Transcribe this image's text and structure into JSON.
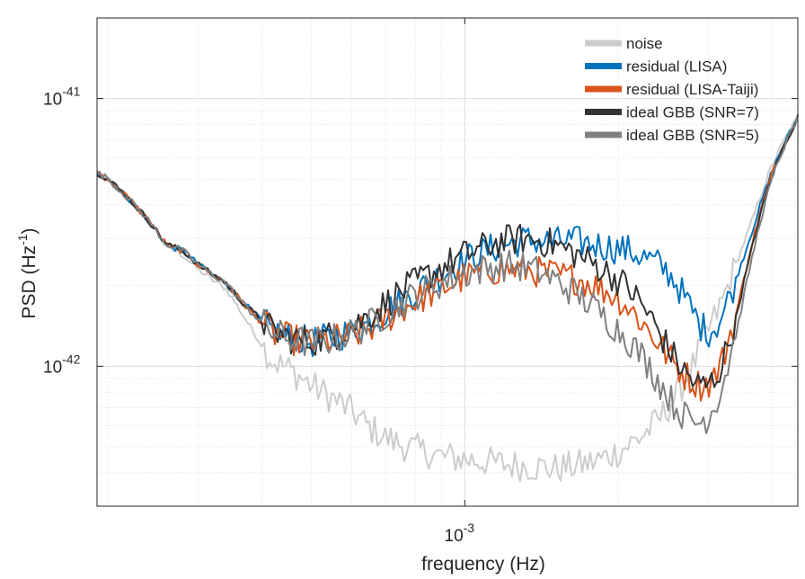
{
  "chart_data": {
    "type": "line",
    "title": "",
    "xlabel": "frequency (Hz)",
    "ylabel_base": "PSD (Hz",
    "ylabel_exp": "-1",
    "ylabel_close": ")",
    "xscale": "log",
    "yscale": "log",
    "xlim": [
      0.00019,
      0.0045
    ],
    "ylim": [
      3e-43,
      2e-41
    ],
    "grid": true,
    "legend_position": "top-right",
    "x_ticks": [
      {
        "value": 0.001,
        "base": "10",
        "exp": "-3"
      }
    ],
    "y_ticks": [
      {
        "value": 1e-42,
        "base": "10",
        "exp": "-42"
      },
      {
        "value": 1e-41,
        "base": "10",
        "exp": "-41"
      }
    ],
    "series": [
      {
        "name": "noise",
        "color": "#cccccc",
        "points": [
          [
            0.00019,
            5.3e-42
          ],
          [
            0.0002,
            5e-42
          ],
          [
            0.00022,
            4.2e-42
          ],
          [
            0.00024,
            3.5e-42
          ],
          [
            0.00026,
            2.8e-42
          ],
          [
            0.00028,
            2.6e-42
          ],
          [
            0.0003,
            2.3e-42
          ],
          [
            0.00032,
            2.1e-42
          ],
          [
            0.00034,
            1.95e-42
          ],
          [
            0.00036,
            1.65e-42
          ],
          [
            0.00038,
            1.4e-42
          ],
          [
            0.0004,
            1.2e-42
          ],
          [
            0.00042,
            1.05e-42
          ],
          [
            0.00045,
            9.8e-43
          ],
          [
            0.00048,
            9e-43
          ],
          [
            0.0005,
            8.5e-43
          ],
          [
            0.00055,
            7.6e-43
          ],
          [
            0.0006,
            6.8e-43
          ],
          [
            0.00065,
            5.9e-43
          ],
          [
            0.0007,
            5.4e-43
          ],
          [
            0.00075,
            5.1e-43
          ],
          [
            0.0008,
            4.9e-43
          ],
          [
            0.0009,
            4.6e-43
          ],
          [
            0.001,
            4.5e-43
          ],
          [
            0.0011,
            4.4e-43
          ],
          [
            0.0012,
            4.3e-43
          ],
          [
            0.0013,
            4.25e-43
          ],
          [
            0.0014,
            4.2e-43
          ],
          [
            0.0015,
            4.15e-43
          ],
          [
            0.0016,
            4.2e-43
          ],
          [
            0.0017,
            4.3e-43
          ],
          [
            0.0018,
            4.4e-43
          ],
          [
            0.0019,
            4.6e-43
          ],
          [
            0.002,
            4.8e-43
          ],
          [
            0.0021,
            5.1e-43
          ],
          [
            0.0022,
            5.4e-43
          ],
          [
            0.0023,
            5.8e-43
          ],
          [
            0.0024,
            6.3e-43
          ],
          [
            0.0025,
            7e-43
          ],
          [
            0.0026,
            7.8e-43
          ],
          [
            0.0027,
            8.8e-43
          ],
          [
            0.0028,
            1e-42
          ],
          [
            0.003,
            1.35e-42
          ],
          [
            0.0032,
            1.75e-42
          ],
          [
            0.0034,
            2.4e-42
          ],
          [
            0.0036,
            3.2e-42
          ],
          [
            0.0038,
            4.3e-42
          ],
          [
            0.004,
            5.6e-42
          ],
          [
            0.0042,
            6.8e-42
          ],
          [
            0.0045,
            8.5e-42
          ]
        ]
      },
      {
        "name": "residual (LISA)",
        "color": "#0072bd",
        "points": [
          [
            0.00019,
            5.3e-42
          ],
          [
            0.0002,
            5e-42
          ],
          [
            0.00022,
            4.2e-42
          ],
          [
            0.00024,
            3.5e-42
          ],
          [
            0.00026,
            2.85e-42
          ],
          [
            0.00028,
            2.7e-42
          ],
          [
            0.0003,
            2.4e-42
          ],
          [
            0.00032,
            2.2e-42
          ],
          [
            0.00034,
            2.05e-42
          ],
          [
            0.00036,
            1.8e-42
          ],
          [
            0.00038,
            1.62e-42
          ],
          [
            0.0004,
            1.48e-42
          ],
          [
            0.00042,
            1.35e-42
          ],
          [
            0.00045,
            1.28e-42
          ],
          [
            0.00048,
            1.25e-42
          ],
          [
            0.0005,
            1.23e-42
          ],
          [
            0.00055,
            1.28e-42
          ],
          [
            0.0006,
            1.35e-42
          ],
          [
            0.00065,
            1.45e-42
          ],
          [
            0.0007,
            1.6e-42
          ],
          [
            0.00075,
            1.75e-42
          ],
          [
            0.0008,
            1.9e-42
          ],
          [
            0.0009,
            2.2e-42
          ],
          [
            0.001,
            2.5e-42
          ],
          [
            0.0011,
            2.7e-42
          ],
          [
            0.0012,
            2.85e-42
          ],
          [
            0.0013,
            2.95e-42
          ],
          [
            0.0014,
            2.95e-42
          ],
          [
            0.0015,
            2.9e-42
          ],
          [
            0.0016,
            2.95e-42
          ],
          [
            0.0017,
            2.9e-42
          ],
          [
            0.0018,
            2.85e-42
          ],
          [
            0.0019,
            2.8e-42
          ],
          [
            0.002,
            2.75e-42
          ],
          [
            0.0021,
            2.7e-42
          ],
          [
            0.0022,
            2.6e-42
          ],
          [
            0.0023,
            2.5e-42
          ],
          [
            0.0024,
            2.4e-42
          ],
          [
            0.0025,
            2.25e-42
          ],
          [
            0.0026,
            2.05e-42
          ],
          [
            0.0027,
            1.8e-42
          ],
          [
            0.0028,
            1.6e-42
          ],
          [
            0.0029,
            1.42e-42
          ],
          [
            0.003,
            1.35e-42
          ],
          [
            0.0031,
            1.4e-42
          ],
          [
            0.0032,
            1.55e-42
          ],
          [
            0.0034,
            2.1e-42
          ],
          [
            0.0036,
            2.9e-42
          ],
          [
            0.0038,
            4e-42
          ],
          [
            0.004,
            5.3e-42
          ],
          [
            0.0042,
            6.6e-42
          ],
          [
            0.0045,
            8.5e-42
          ]
        ]
      },
      {
        "name": "residual (LISA-Taiji)",
        "color": "#d95319",
        "points": [
          [
            0.00019,
            5.3e-42
          ],
          [
            0.0002,
            5e-42
          ],
          [
            0.00022,
            4.2e-42
          ],
          [
            0.00024,
            3.5e-42
          ],
          [
            0.00026,
            2.85e-42
          ],
          [
            0.00028,
            2.7e-42
          ],
          [
            0.0003,
            2.4e-42
          ],
          [
            0.00032,
            2.2e-42
          ],
          [
            0.00034,
            2.05e-42
          ],
          [
            0.00036,
            1.8e-42
          ],
          [
            0.00038,
            1.6e-42
          ],
          [
            0.0004,
            1.46e-42
          ],
          [
            0.00042,
            1.33e-42
          ],
          [
            0.00045,
            1.27e-42
          ],
          [
            0.00048,
            1.24e-42
          ],
          [
            0.0005,
            1.22e-42
          ],
          [
            0.00055,
            1.25e-42
          ],
          [
            0.0006,
            1.3e-42
          ],
          [
            0.00065,
            1.38e-42
          ],
          [
            0.0007,
            1.5e-42
          ],
          [
            0.00075,
            1.63e-42
          ],
          [
            0.0008,
            1.76e-42
          ],
          [
            0.0009,
            1.95e-42
          ],
          [
            0.001,
            2.15e-42
          ],
          [
            0.0011,
            2.27e-42
          ],
          [
            0.0012,
            2.3e-42
          ],
          [
            0.0013,
            2.3e-42
          ],
          [
            0.0014,
            2.25e-42
          ],
          [
            0.0015,
            2.2e-42
          ],
          [
            0.0016,
            2.15e-42
          ],
          [
            0.0017,
            2.1e-42
          ],
          [
            0.0018,
            2e-42
          ],
          [
            0.0019,
            1.9e-42
          ],
          [
            0.002,
            1.8e-42
          ],
          [
            0.0021,
            1.65e-42
          ],
          [
            0.0022,
            1.5e-42
          ],
          [
            0.0023,
            1.35e-42
          ],
          [
            0.0024,
            1.22e-42
          ],
          [
            0.0025,
            1.1e-42
          ],
          [
            0.0026,
            1e-42
          ],
          [
            0.0027,
            9.3e-43
          ],
          [
            0.0028,
            8.8e-43
          ],
          [
            0.0029,
            8.5e-43
          ],
          [
            0.003,
            8.6e-43
          ],
          [
            0.0031,
            9.2e-43
          ],
          [
            0.0032,
            1.05e-42
          ],
          [
            0.0034,
            1.55e-42
          ],
          [
            0.0036,
            2.5e-42
          ],
          [
            0.0038,
            3.8e-42
          ],
          [
            0.004,
            5.2e-42
          ],
          [
            0.0042,
            6.6e-42
          ],
          [
            0.0045,
            8.5e-42
          ]
        ]
      },
      {
        "name": "ideal GBB (SNR=7)",
        "color": "#333333",
        "points": [
          [
            0.00019,
            5.3e-42
          ],
          [
            0.0002,
            5e-42
          ],
          [
            0.00022,
            4.2e-42
          ],
          [
            0.00024,
            3.5e-42
          ],
          [
            0.00026,
            2.85e-42
          ],
          [
            0.00028,
            2.7e-42
          ],
          [
            0.0003,
            2.4e-42
          ],
          [
            0.00032,
            2.2e-42
          ],
          [
            0.00034,
            2.05e-42
          ],
          [
            0.00036,
            1.8e-42
          ],
          [
            0.00038,
            1.62e-42
          ],
          [
            0.0004,
            1.48e-42
          ],
          [
            0.00042,
            1.35e-42
          ],
          [
            0.00045,
            1.28e-42
          ],
          [
            0.00048,
            1.25e-42
          ],
          [
            0.0005,
            1.24e-42
          ],
          [
            0.00055,
            1.3e-42
          ],
          [
            0.0006,
            1.4e-42
          ],
          [
            0.00065,
            1.55e-42
          ],
          [
            0.0007,
            1.72e-42
          ],
          [
            0.00075,
            1.9e-42
          ],
          [
            0.0008,
            2.05e-42
          ],
          [
            0.0009,
            2.35e-42
          ],
          [
            0.001,
            2.6e-42
          ],
          [
            0.0011,
            2.8e-42
          ],
          [
            0.0012,
            2.95e-42
          ],
          [
            0.0013,
            3e-42
          ],
          [
            0.0014,
            2.95e-42
          ],
          [
            0.0015,
            2.85e-42
          ],
          [
            0.0016,
            2.7e-42
          ],
          [
            0.0017,
            2.55e-42
          ],
          [
            0.0018,
            2.4e-42
          ],
          [
            0.0019,
            2.25e-42
          ],
          [
            0.002,
            2.1e-42
          ],
          [
            0.0021,
            1.95e-42
          ],
          [
            0.0022,
            1.75e-42
          ],
          [
            0.0023,
            1.55e-42
          ],
          [
            0.0024,
            1.35e-42
          ],
          [
            0.0025,
            1.18e-42
          ],
          [
            0.0026,
            1.05e-42
          ],
          [
            0.0027,
            9.5e-43
          ],
          [
            0.0028,
            8.8e-43
          ],
          [
            0.0029,
            8.4e-43
          ],
          [
            0.003,
            8.5e-43
          ],
          [
            0.0031,
            9e-43
          ],
          [
            0.0032,
            1.02e-42
          ],
          [
            0.0034,
            1.5e-42
          ],
          [
            0.0036,
            2.45e-42
          ],
          [
            0.0038,
            3.7e-42
          ],
          [
            0.004,
            5.1e-42
          ],
          [
            0.0042,
            6.5e-42
          ],
          [
            0.0045,
            8.5e-42
          ]
        ]
      },
      {
        "name": "ideal GBB (SNR=5)",
        "color": "#808080",
        "points": [
          [
            0.00019,
            5.3e-42
          ],
          [
            0.0002,
            5e-42
          ],
          [
            0.00022,
            4.2e-42
          ],
          [
            0.00024,
            3.5e-42
          ],
          [
            0.00026,
            2.85e-42
          ],
          [
            0.00028,
            2.7e-42
          ],
          [
            0.0003,
            2.4e-42
          ],
          [
            0.00032,
            2.2e-42
          ],
          [
            0.00034,
            2.05e-42
          ],
          [
            0.00036,
            1.8e-42
          ],
          [
            0.00038,
            1.6e-42
          ],
          [
            0.0004,
            1.46e-42
          ],
          [
            0.00042,
            1.34e-42
          ],
          [
            0.00045,
            1.27e-42
          ],
          [
            0.00048,
            1.24e-42
          ],
          [
            0.0005,
            1.22e-42
          ],
          [
            0.00055,
            1.26e-42
          ],
          [
            0.0006,
            1.33e-42
          ],
          [
            0.00065,
            1.43e-42
          ],
          [
            0.0007,
            1.57e-42
          ],
          [
            0.00075,
            1.72e-42
          ],
          [
            0.0008,
            1.85e-42
          ],
          [
            0.0009,
            2.05e-42
          ],
          [
            0.001,
            2.22e-42
          ],
          [
            0.0011,
            2.32e-42
          ],
          [
            0.0012,
            2.38e-42
          ],
          [
            0.0013,
            2.35e-42
          ],
          [
            0.0014,
            2.25e-42
          ],
          [
            0.0015,
            2.1e-42
          ],
          [
            0.0016,
            1.95e-42
          ],
          [
            0.0017,
            1.8e-42
          ],
          [
            0.0018,
            1.65e-42
          ],
          [
            0.0019,
            1.5e-42
          ],
          [
            0.002,
            1.37e-42
          ],
          [
            0.0021,
            1.25e-42
          ],
          [
            0.0022,
            1.12e-42
          ],
          [
            0.0023,
            1e-42
          ],
          [
            0.0024,
            8.8e-43
          ],
          [
            0.0025,
            7.8e-43
          ],
          [
            0.0026,
            7e-43
          ],
          [
            0.0027,
            6.5e-43
          ],
          [
            0.0028,
            6.2e-43
          ],
          [
            0.0029,
            6.2e-43
          ],
          [
            0.003,
            6.5e-43
          ],
          [
            0.0031,
            7.2e-43
          ],
          [
            0.0032,
            8.5e-43
          ],
          [
            0.0034,
            1.3e-42
          ],
          [
            0.0036,
            2.2e-42
          ],
          [
            0.0038,
            3.5e-42
          ],
          [
            0.004,
            5e-42
          ],
          [
            0.0042,
            6.4e-42
          ],
          [
            0.0045,
            8.5e-42
          ]
        ]
      }
    ]
  }
}
